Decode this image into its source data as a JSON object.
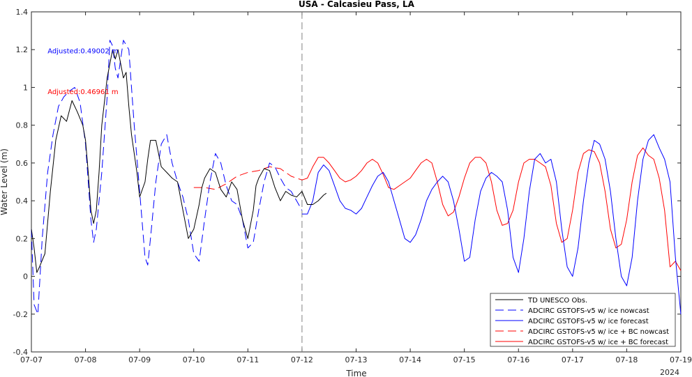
{
  "chart_data": {
    "type": "line",
    "title": "USA - Calcasieu Pass, LA",
    "xlabel": "Time",
    "ylabel": "Water Level (m)",
    "year_label": "2024",
    "xlim": [
      0,
      12
    ],
    "ylim": [
      -0.4,
      1.4
    ],
    "x_ticks": [
      "07-07",
      "07-08",
      "07-09",
      "07-10",
      "07-11",
      "07-12",
      "07-13",
      "07-14",
      "07-15",
      "07-16",
      "07-17",
      "07-18",
      "07-19"
    ],
    "y_ticks": [
      "-0.4",
      "-0.2",
      "0",
      "0.2",
      "0.4",
      "0.6",
      "0.8",
      "1",
      "1.2",
      "1.4"
    ],
    "y_tick_values": [
      -0.4,
      -0.2,
      0,
      0.2,
      0.4,
      0.6,
      0.8,
      1.0,
      1.2,
      1.4
    ],
    "grid": false,
    "legend_position": "bottom-right",
    "nowcast_boundary_x": 5,
    "annotations": [
      {
        "text": "Adjusted:0.49002 m",
        "color": "#0000ff",
        "x": 0.3,
        "y": 1.18
      },
      {
        "text": "Adjusted:0.46961 m",
        "color": "#ff0000",
        "x": 0.3,
        "y": 0.965
      }
    ],
    "series": [
      {
        "name": "TD UNESCO Obs.",
        "color": "#000000",
        "dash": "solid",
        "x": [
          0,
          0.05,
          0.1,
          0.15,
          0.25,
          0.35,
          0.45,
          0.55,
          0.65,
          0.75,
          0.85,
          0.95,
          1.0,
          1.05,
          1.1,
          1.15,
          1.2,
          1.25,
          1.3,
          1.4,
          1.5,
          1.55,
          1.6,
          1.7,
          1.75,
          1.8,
          1.85,
          1.95,
          2.0,
          2.1,
          2.15,
          2.2,
          2.3,
          2.4,
          2.5,
          2.6,
          2.7,
          2.8,
          2.9,
          3.0,
          3.1,
          3.15,
          3.2,
          3.3,
          3.4,
          3.5,
          3.6,
          3.7,
          3.8,
          3.9,
          4.0,
          4.1,
          4.15,
          4.2,
          4.3,
          4.4,
          4.5,
          4.6,
          4.7,
          4.8,
          4.9,
          5.0,
          5.1,
          5.2,
          5.3,
          5.4,
          5.45
        ],
        "y": [
          0.25,
          0.15,
          0.02,
          0.05,
          0.12,
          0.45,
          0.72,
          0.85,
          0.82,
          0.93,
          0.87,
          0.8,
          0.72,
          0.55,
          0.35,
          0.28,
          0.35,
          0.55,
          0.8,
          1.05,
          1.2,
          1.15,
          1.2,
          1.05,
          1.08,
          0.9,
          0.75,
          0.55,
          0.42,
          0.5,
          0.62,
          0.72,
          0.72,
          0.58,
          0.55,
          0.52,
          0.5,
          0.35,
          0.2,
          0.25,
          0.38,
          0.47,
          0.52,
          0.57,
          0.55,
          0.46,
          0.42,
          0.5,
          0.46,
          0.3,
          0.2,
          0.35,
          0.48,
          0.52,
          0.57,
          0.56,
          0.47,
          0.4,
          0.45,
          0.43,
          0.42,
          0.45,
          0.38,
          0.38,
          0.4,
          0.43,
          0.44
        ]
      },
      {
        "name": "ADCIRC GSTOFS-v5 w/ ice nowcast",
        "color": "#0000ff",
        "dash": "12,6",
        "x": [
          0,
          0.05,
          0.12,
          0.2,
          0.3,
          0.4,
          0.5,
          0.6,
          0.7,
          0.8,
          0.9,
          1.0,
          1.05,
          1.1,
          1.15,
          1.2,
          1.3,
          1.4,
          1.45,
          1.5,
          1.55,
          1.6,
          1.7,
          1.8,
          1.85,
          1.9,
          2.0,
          2.1,
          2.15,
          2.2,
          2.3,
          2.4,
          2.5,
          2.6,
          2.7,
          2.8,
          2.9,
          3.0,
          3.1,
          3.2,
          3.3,
          3.4,
          3.5,
          3.6,
          3.7,
          3.8,
          3.9,
          4.0,
          4.1,
          4.2,
          4.3,
          4.4,
          4.5,
          4.6,
          4.7,
          4.8,
          4.9,
          5.0
        ],
        "y": [
          0.25,
          -0.15,
          -0.2,
          0.2,
          0.55,
          0.75,
          0.9,
          0.95,
          0.98,
          1.0,
          0.92,
          0.7,
          0.5,
          0.3,
          0.18,
          0.25,
          0.55,
          0.95,
          1.25,
          1.22,
          1.1,
          1.05,
          1.25,
          1.2,
          1.0,
          0.8,
          0.45,
          0.1,
          0.06,
          0.2,
          0.5,
          0.7,
          0.75,
          0.6,
          0.5,
          0.42,
          0.3,
          0.12,
          0.08,
          0.3,
          0.5,
          0.65,
          0.6,
          0.48,
          0.4,
          0.38,
          0.3,
          0.15,
          0.18,
          0.35,
          0.5,
          0.6,
          0.58,
          0.52,
          0.47,
          0.45,
          0.4,
          0.35
        ]
      },
      {
        "name": "ADCIRC GSTOFS-v5 w/ ice forecast",
        "color": "#0000ff",
        "dash": "solid",
        "x": [
          5.0,
          5.1,
          5.2,
          5.3,
          5.4,
          5.5,
          5.6,
          5.7,
          5.8,
          5.9,
          6.0,
          6.1,
          6.2,
          6.3,
          6.4,
          6.5,
          6.6,
          6.7,
          6.8,
          6.9,
          7.0,
          7.1,
          7.2,
          7.3,
          7.4,
          7.5,
          7.6,
          7.7,
          7.8,
          7.9,
          8.0,
          8.1,
          8.2,
          8.3,
          8.4,
          8.5,
          8.6,
          8.7,
          8.8,
          8.9,
          9.0,
          9.1,
          9.2,
          9.3,
          9.4,
          9.5,
          9.6,
          9.7,
          9.8,
          9.9,
          10.0,
          10.1,
          10.2,
          10.3,
          10.4,
          10.5,
          10.6,
          10.7,
          10.8,
          10.9,
          11.0,
          11.1,
          11.2,
          11.3,
          11.4,
          11.5,
          11.6,
          11.7,
          11.8,
          11.9,
          12.0
        ],
        "y": [
          0.33,
          0.33,
          0.4,
          0.55,
          0.59,
          0.56,
          0.48,
          0.4,
          0.36,
          0.35,
          0.33,
          0.36,
          0.42,
          0.48,
          0.53,
          0.55,
          0.5,
          0.4,
          0.3,
          0.2,
          0.18,
          0.22,
          0.3,
          0.4,
          0.46,
          0.5,
          0.53,
          0.5,
          0.4,
          0.25,
          0.08,
          0.1,
          0.3,
          0.45,
          0.52,
          0.55,
          0.53,
          0.5,
          0.35,
          0.1,
          0.02,
          0.2,
          0.45,
          0.62,
          0.65,
          0.6,
          0.62,
          0.5,
          0.25,
          0.05,
          0.0,
          0.15,
          0.4,
          0.6,
          0.72,
          0.7,
          0.62,
          0.45,
          0.2,
          0.0,
          -0.05,
          0.1,
          0.4,
          0.62,
          0.72,
          0.75,
          0.68,
          0.62,
          0.5,
          0.1,
          -0.2
        ]
      },
      {
        "name": "ADCIRC GSTOFS-v5 w/ ice + BC nowcast",
        "color": "#ff0000",
        "dash": "12,6",
        "x": [
          3.0,
          3.2,
          3.4,
          3.6,
          3.8,
          4.0,
          4.2,
          4.4,
          4.6,
          4.8,
          5.0
        ],
        "y": [
          0.47,
          0.47,
          0.46,
          0.49,
          0.53,
          0.55,
          0.56,
          0.58,
          0.57,
          0.53,
          0.51
        ]
      },
      {
        "name": "ADCIRC GSTOFS-v5 w/ ice + BC forecast",
        "color": "#ff0000",
        "dash": "solid",
        "x": [
          5.0,
          5.1,
          5.2,
          5.3,
          5.4,
          5.5,
          5.6,
          5.7,
          5.8,
          5.9,
          6.0,
          6.1,
          6.2,
          6.3,
          6.4,
          6.5,
          6.6,
          6.7,
          6.8,
          6.9,
          7.0,
          7.1,
          7.2,
          7.3,
          7.4,
          7.5,
          7.6,
          7.7,
          7.8,
          7.9,
          8.0,
          8.1,
          8.2,
          8.3,
          8.4,
          8.5,
          8.6,
          8.7,
          8.8,
          8.9,
          9.0,
          9.1,
          9.2,
          9.3,
          9.4,
          9.5,
          9.6,
          9.7,
          9.8,
          9.9,
          10.0,
          10.1,
          10.2,
          10.3,
          10.4,
          10.5,
          10.6,
          10.7,
          10.8,
          10.9,
          11.0,
          11.1,
          11.2,
          11.3,
          11.4,
          11.5,
          11.6,
          11.7,
          11.8,
          11.9,
          12.0
        ],
        "y": [
          0.51,
          0.52,
          0.58,
          0.63,
          0.63,
          0.6,
          0.56,
          0.52,
          0.5,
          0.51,
          0.53,
          0.56,
          0.6,
          0.62,
          0.6,
          0.54,
          0.47,
          0.46,
          0.48,
          0.5,
          0.52,
          0.56,
          0.6,
          0.62,
          0.6,
          0.5,
          0.38,
          0.32,
          0.34,
          0.42,
          0.52,
          0.6,
          0.63,
          0.63,
          0.6,
          0.5,
          0.35,
          0.27,
          0.28,
          0.35,
          0.5,
          0.6,
          0.62,
          0.62,
          0.6,
          0.58,
          0.48,
          0.28,
          0.18,
          0.2,
          0.35,
          0.55,
          0.65,
          0.67,
          0.66,
          0.6,
          0.45,
          0.25,
          0.15,
          0.17,
          0.3,
          0.5,
          0.64,
          0.68,
          0.64,
          0.62,
          0.52,
          0.35,
          0.05,
          0.08,
          0.03
        ]
      }
    ]
  }
}
